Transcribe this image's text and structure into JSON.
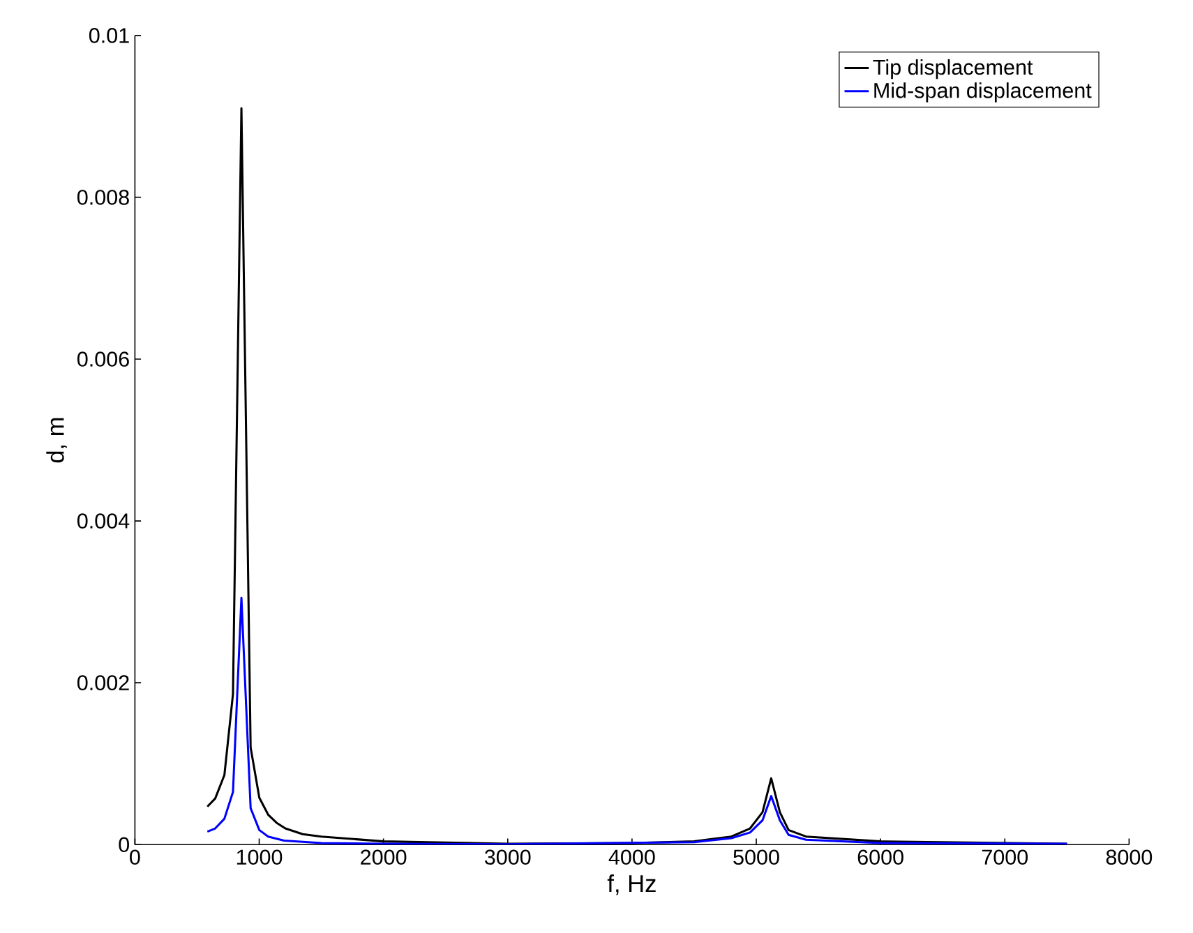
{
  "chart_data": {
    "type": "line",
    "xlabel": "f, Hz",
    "ylabel": "d, m",
    "xlim": [
      0,
      8000
    ],
    "xticks": [
      0,
      1000,
      2000,
      3000,
      4000,
      5000,
      6000,
      7000,
      8000
    ],
    "ylim": [
      0,
      0.01
    ],
    "yticks": [
      0,
      0.002,
      0.004,
      0.006,
      0.008,
      0.01
    ],
    "legend": "top right",
    "grid": false,
    "series": [
      {
        "name": "Tip displacement",
        "color": "#000000",
        "x": [
          583,
          646,
          720,
          789,
          857,
          931,
          1001,
          1072,
          1140,
          1210,
          1350,
          1500,
          2000,
          3000,
          4000,
          4500,
          4800,
          4950,
          5050,
          5120,
          5190,
          5260,
          5400,
          6000,
          7500
        ],
        "values": [
          0.00047,
          0.00057,
          0.00086,
          0.00186,
          0.0091,
          0.0012,
          0.00058,
          0.00037,
          0.00027,
          0.0002,
          0.00013,
          0.0001,
          4e-05,
          1e-05,
          2e-05,
          4e-05,
          0.0001,
          0.0002,
          0.0004,
          0.00082,
          0.0004,
          0.00018,
          0.0001,
          4e-05,
          1e-05
        ]
      },
      {
        "name": "Mid-span displacement",
        "color": "#0000ff",
        "x": [
          583,
          646,
          720,
          789,
          857,
          931,
          1001,
          1072,
          1200,
          1500,
          2000,
          3000,
          4500,
          4800,
          4950,
          5050,
          5120,
          5190,
          5260,
          5400,
          6000,
          7500
        ],
        "values": [
          0.00016,
          0.0002,
          0.00032,
          0.00065,
          0.00305,
          0.00045,
          0.00018,
          0.0001,
          5e-05,
          2e-05,
          1e-05,
          5e-06,
          3e-05,
          8e-05,
          0.00015,
          0.0003,
          0.0006,
          0.0003,
          0.00012,
          6e-05,
          2e-05,
          1e-05
        ]
      }
    ]
  }
}
